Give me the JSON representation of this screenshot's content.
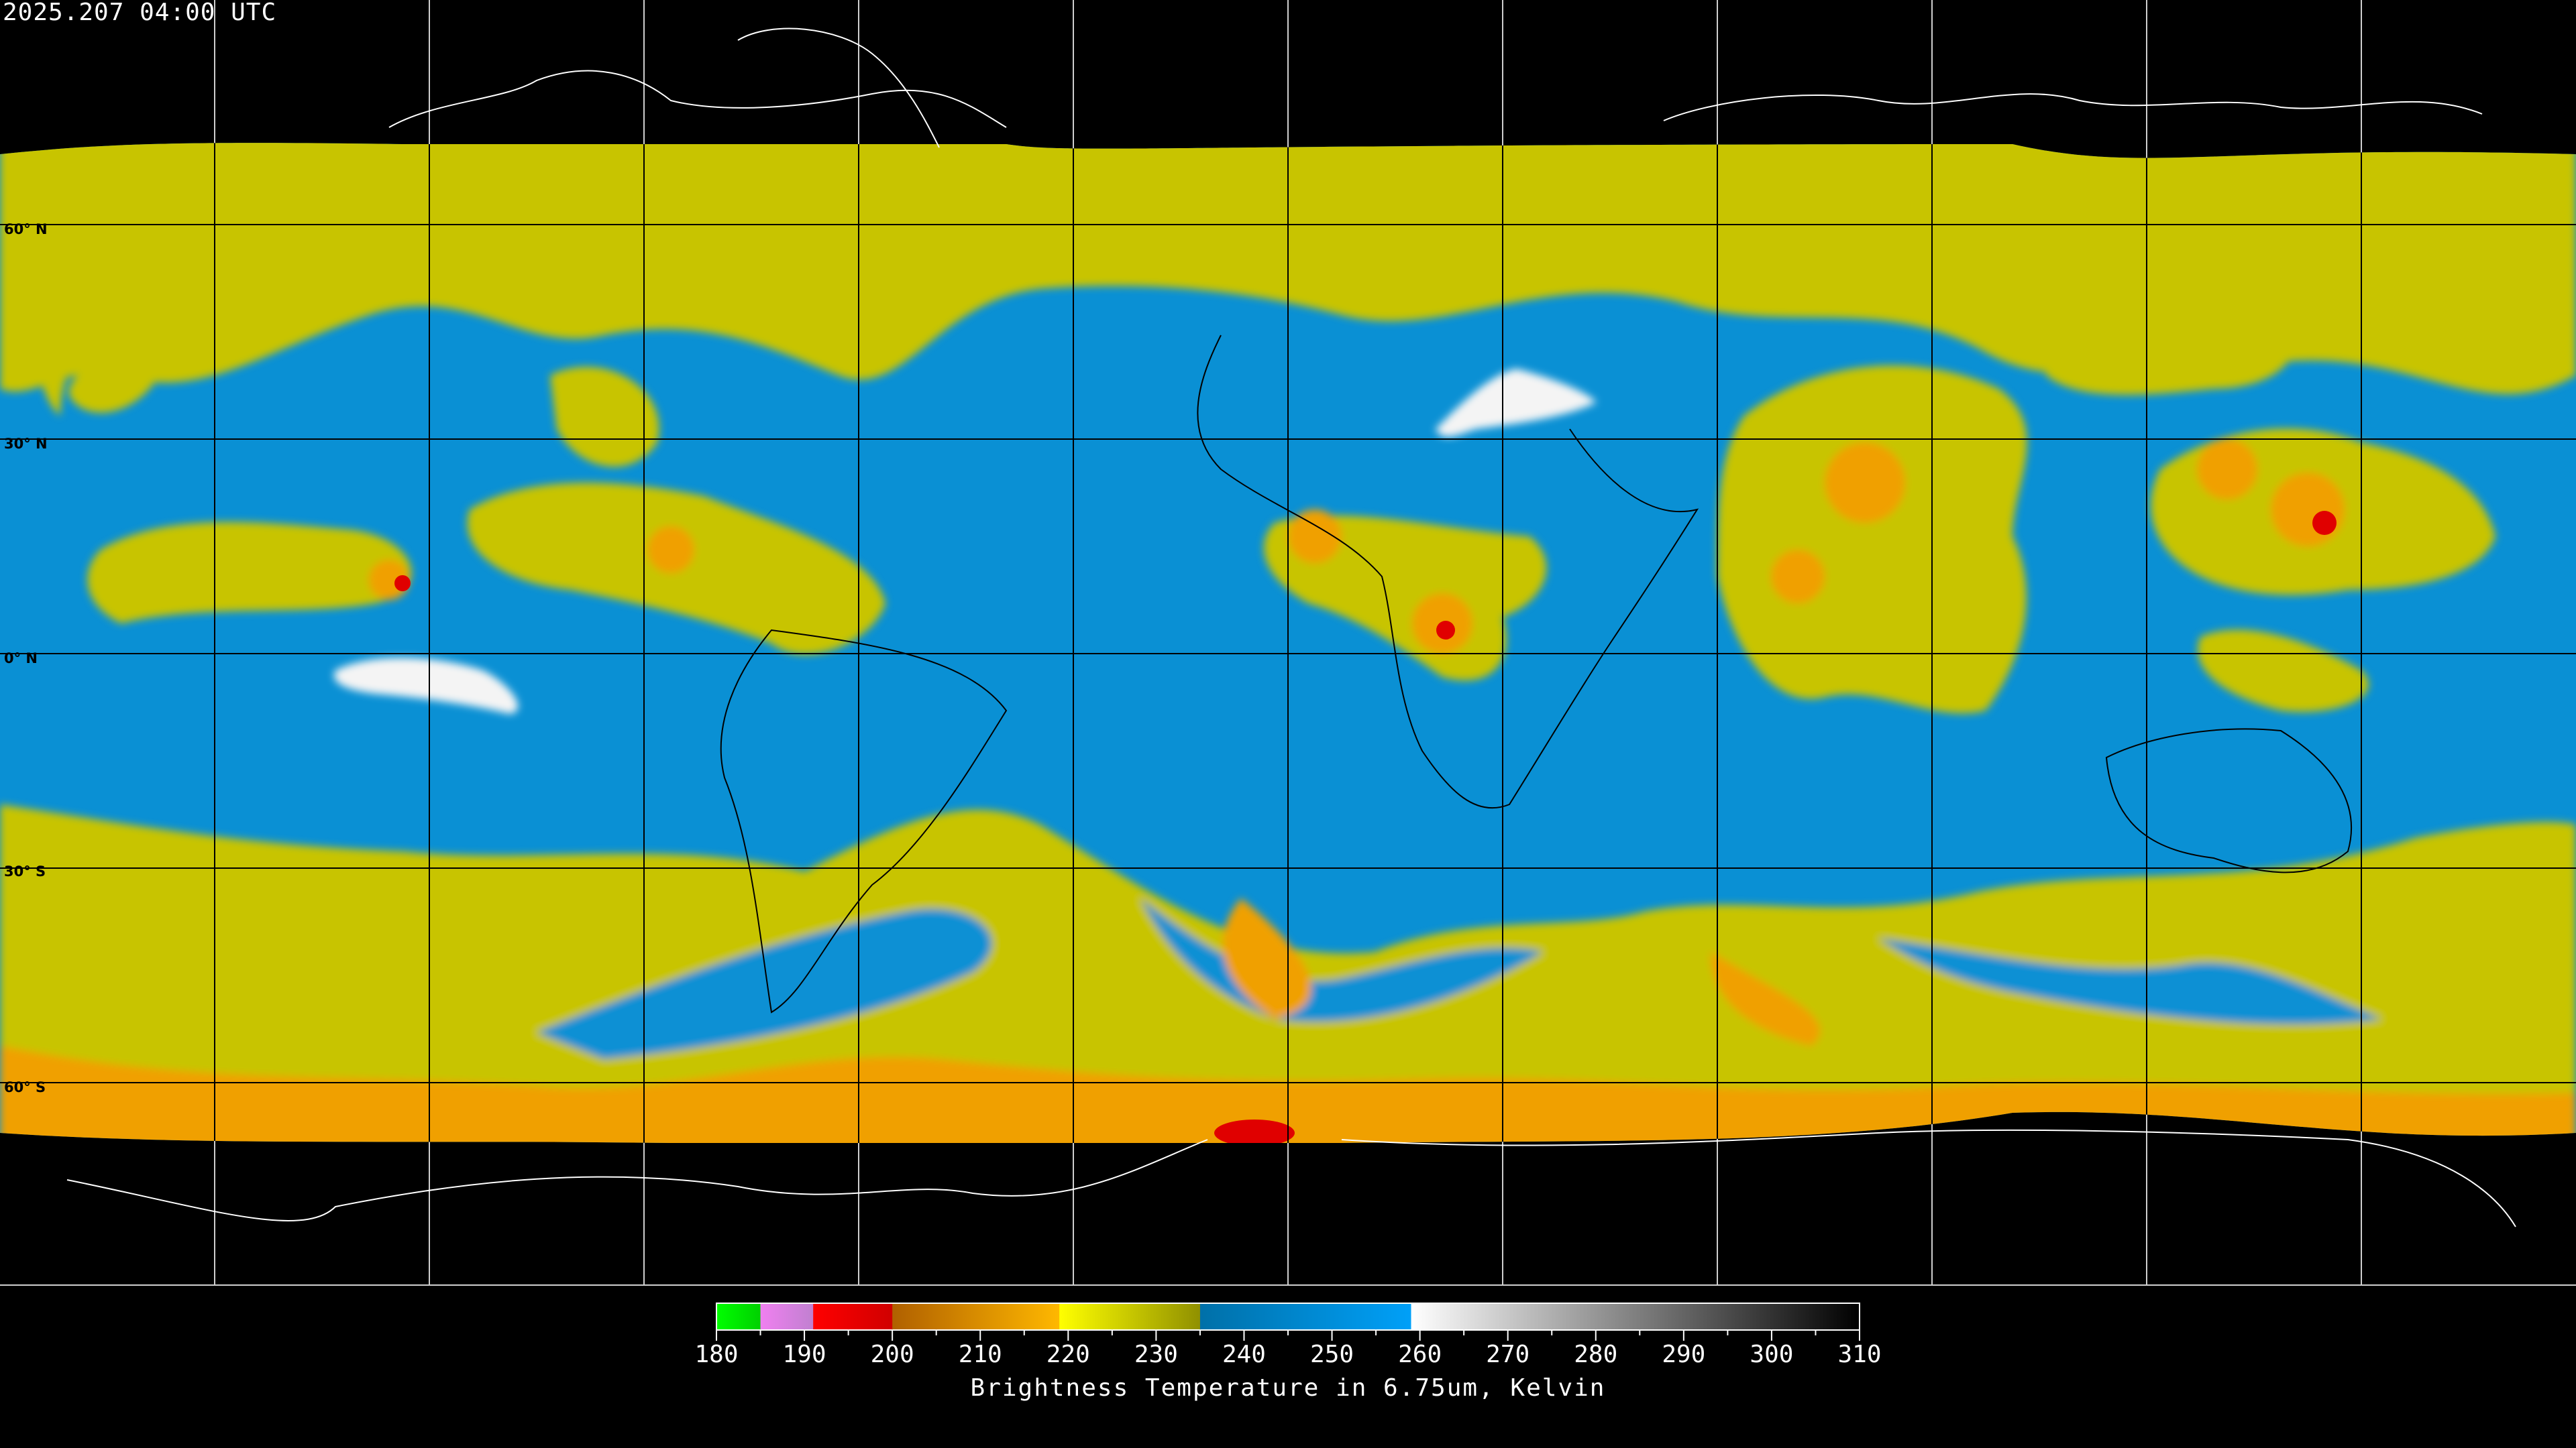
{
  "header": {
    "timestamp": "2025.207 04:00 UTC"
  },
  "map": {
    "projection": "equirectangular",
    "lat_labels": [
      "60° N",
      "30° N",
      "0° N",
      "30° S",
      "60° S"
    ],
    "colors": {
      "moist_blue": "#0a90d4",
      "cloud_yellow": "#c8c400",
      "cold_orange": "#f0a000",
      "deep_red": "#e00000",
      "dry_white": "#f4f4f4",
      "space": "#000000"
    }
  },
  "colorbar": {
    "title": "Brightness Temperature in 6.75um, Kelvin",
    "min": 180,
    "max": 310,
    "tick_labels": [
      "180",
      "190",
      "200",
      "210",
      "220",
      "230",
      "240",
      "250",
      "260",
      "270",
      "280",
      "290",
      "300",
      "310"
    ],
    "segments": [
      {
        "from": 180,
        "to": 185,
        "c1": "#00ff00",
        "c2": "#00d000"
      },
      {
        "from": 185,
        "to": 191,
        "c1": "#f080f0",
        "c2": "#c080d0"
      },
      {
        "from": 191,
        "to": 200,
        "c1": "#ff0000",
        "c2": "#d00000"
      },
      {
        "from": 200,
        "to": 219,
        "c1": "#b06000",
        "c2": "#ffb800"
      },
      {
        "from": 219,
        "to": 235,
        "c1": "#ffff00",
        "c2": "#909000"
      },
      {
        "from": 235,
        "to": 259,
        "c1": "#0070a8",
        "c2": "#00a0f8"
      },
      {
        "from": 259,
        "to": 310,
        "c1": "#ffffff",
        "c2": "#000000"
      }
    ]
  }
}
